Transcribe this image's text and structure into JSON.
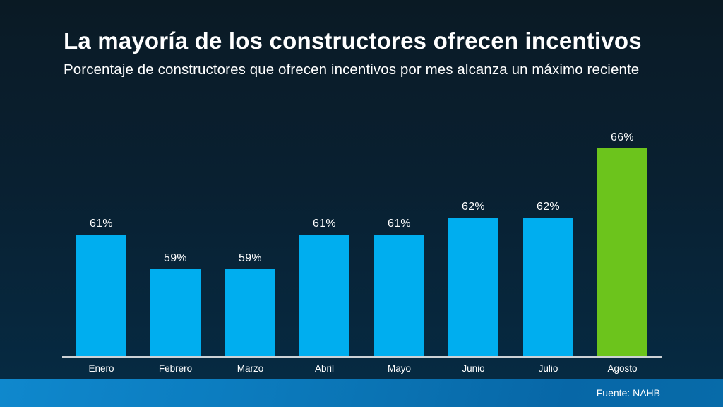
{
  "header": {
    "title": "La mayoría de los constructores ofrecen incentivos",
    "subtitle": "Porcentaje de constructores que ofrecen incentivos por mes alcanza un máximo reciente"
  },
  "footer": {
    "source": "Fuente: NAHB"
  },
  "colors": {
    "bar_default": "#00AEEF",
    "bar_highlight": "#6CC41C",
    "background_top": "#0A1A24",
    "background_bottom": "#052B44",
    "axis_line": "#CCD1D5",
    "text": "#FFFFFF",
    "footer_gradient_left": "#0F88CD",
    "footer_gradient_right": "#0767A7"
  },
  "chart_data": {
    "type": "bar",
    "title": "La mayoría de los constructores ofrecen incentivos",
    "subtitle": "Porcentaje de constructores que ofrecen incentivos por mes alcanza un máximo reciente",
    "categories": [
      "Enero",
      "Febrero",
      "Marzo",
      "Abril",
      "Mayo",
      "Junio",
      "Julio",
      "Agosto"
    ],
    "values": [
      61,
      59,
      59,
      61,
      61,
      62,
      62,
      66
    ],
    "value_labels": [
      "61%",
      "59%",
      "59%",
      "61%",
      "61%",
      "62%",
      "62%",
      "66%"
    ],
    "highlight_index": 7,
    "highlight_category": "Agosto",
    "xlabel": "",
    "ylabel": "",
    "unit": "%",
    "ylim": [
      54,
      68
    ],
    "grid": false,
    "legend": "none",
    "source": "Fuente: NAHB"
  }
}
